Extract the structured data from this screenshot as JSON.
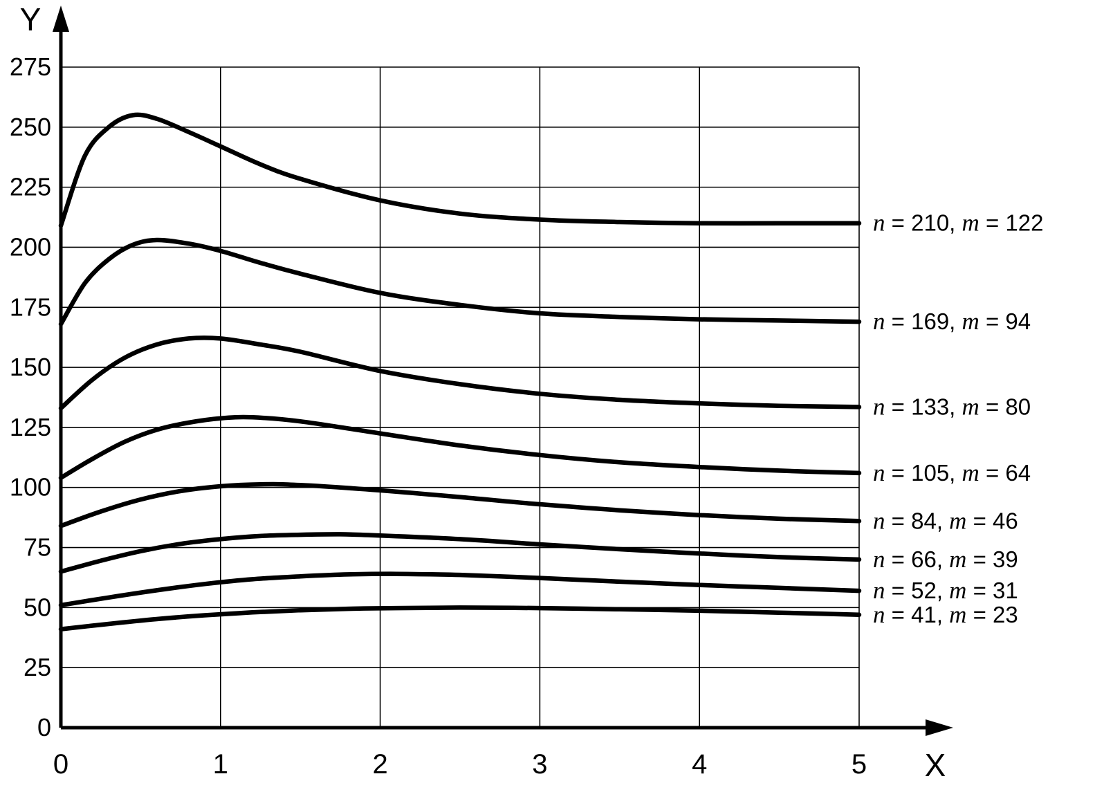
{
  "chart_data": {
    "type": "line",
    "title": "",
    "xlabel": "X",
    "ylabel": "Y",
    "xlim": [
      0,
      5
    ],
    "ylim": [
      0,
      275
    ],
    "x_ticks": [
      0,
      1,
      2,
      3,
      4,
      5
    ],
    "y_ticks": [
      0,
      25,
      50,
      75,
      100,
      125,
      150,
      175,
      200,
      225,
      250,
      275
    ],
    "grid": true,
    "legend_position": "right-inline",
    "series": [
      {
        "n": 210,
        "m": 122,
        "label": "n = 210, m = 122",
        "points": [
          [
            0,
            209
          ],
          [
            0.15,
            238
          ],
          [
            0.3,
            250
          ],
          [
            0.45,
            255
          ],
          [
            0.6,
            253.5
          ],
          [
            0.8,
            248
          ],
          [
            1.0,
            242
          ],
          [
            1.25,
            234.5
          ],
          [
            1.5,
            228.5
          ],
          [
            2.0,
            219.5
          ],
          [
            2.5,
            214
          ],
          [
            3.0,
            211.5
          ],
          [
            3.5,
            210.5
          ],
          [
            4.0,
            210
          ],
          [
            4.5,
            210
          ],
          [
            5.0,
            210
          ]
        ]
      },
      {
        "n": 169,
        "m": 94,
        "label": "n = 169, m = 94",
        "points": [
          [
            0,
            168
          ],
          [
            0.15,
            185
          ],
          [
            0.3,
            195
          ],
          [
            0.45,
            201
          ],
          [
            0.6,
            203
          ],
          [
            0.8,
            201.5
          ],
          [
            1.0,
            198.5
          ],
          [
            1.25,
            193.5
          ],
          [
            1.5,
            189
          ],
          [
            2.0,
            181
          ],
          [
            2.5,
            176
          ],
          [
            3.0,
            172.5
          ],
          [
            3.5,
            171
          ],
          [
            4.0,
            170
          ],
          [
            4.5,
            169.5
          ],
          [
            5.0,
            169
          ]
        ]
      },
      {
        "n": 133,
        "m": 80,
        "label": "n = 133, m = 80",
        "points": [
          [
            0,
            133
          ],
          [
            0.2,
            145
          ],
          [
            0.4,
            154
          ],
          [
            0.6,
            159.5
          ],
          [
            0.8,
            162
          ],
          [
            1.0,
            162
          ],
          [
            1.25,
            159.5
          ],
          [
            1.5,
            156.5
          ],
          [
            2.0,
            148.5
          ],
          [
            2.5,
            143
          ],
          [
            3.0,
            139
          ],
          [
            3.5,
            136.5
          ],
          [
            4.0,
            135
          ],
          [
            4.5,
            134
          ],
          [
            5.0,
            133.5
          ]
        ]
      },
      {
        "n": 105,
        "m": 64,
        "label": "n = 105, m = 64",
        "points": [
          [
            0,
            104
          ],
          [
            0.2,
            112
          ],
          [
            0.4,
            119
          ],
          [
            0.6,
            124
          ],
          [
            0.8,
            127
          ],
          [
            1.0,
            128.8
          ],
          [
            1.2,
            129.2
          ],
          [
            1.5,
            127.5
          ],
          [
            2.0,
            122.5
          ],
          [
            2.5,
            117.5
          ],
          [
            3.0,
            113.5
          ],
          [
            3.5,
            110.5
          ],
          [
            4.0,
            108.5
          ],
          [
            4.5,
            107
          ],
          [
            5.0,
            106
          ]
        ]
      },
      {
        "n": 84,
        "m": 46,
        "label": "n = 84, m = 46",
        "points": [
          [
            0,
            84
          ],
          [
            0.25,
            90
          ],
          [
            0.5,
            95
          ],
          [
            0.75,
            98.5
          ],
          [
            1.0,
            100.5
          ],
          [
            1.25,
            101.3
          ],
          [
            1.5,
            101
          ],
          [
            2.0,
            98.8
          ],
          [
            2.5,
            96
          ],
          [
            3.0,
            93
          ],
          [
            3.5,
            90.5
          ],
          [
            4.0,
            88.5
          ],
          [
            4.5,
            87
          ],
          [
            5.0,
            86
          ]
        ]
      },
      {
        "n": 66,
        "m": 39,
        "label": "n = 66, m = 39",
        "points": [
          [
            0,
            65
          ],
          [
            0.25,
            69.5
          ],
          [
            0.5,
            73.5
          ],
          [
            0.75,
            76.5
          ],
          [
            1.0,
            78.5
          ],
          [
            1.25,
            79.8
          ],
          [
            1.5,
            80.3
          ],
          [
            1.75,
            80.5
          ],
          [
            2.0,
            80
          ],
          [
            2.5,
            78.5
          ],
          [
            3.0,
            76.3
          ],
          [
            3.5,
            74.3
          ],
          [
            4.0,
            72.5
          ],
          [
            4.5,
            71
          ],
          [
            5.0,
            70
          ]
        ]
      },
      {
        "n": 52,
        "m": 31,
        "label": "n = 52, m = 31",
        "points": [
          [
            0,
            51
          ],
          [
            0.3,
            54.2
          ],
          [
            0.6,
            57.2
          ],
          [
            0.9,
            59.8
          ],
          [
            1.2,
            61.8
          ],
          [
            1.5,
            63
          ],
          [
            1.8,
            63.8
          ],
          [
            2.1,
            64
          ],
          [
            2.5,
            63.6
          ],
          [
            3.0,
            62.3
          ],
          [
            3.5,
            60.8
          ],
          [
            4.0,
            59.4
          ],
          [
            4.5,
            58.2
          ],
          [
            5.0,
            57
          ]
        ]
      },
      {
        "n": 41,
        "m": 23,
        "label": "n = 41, m = 23",
        "points": [
          [
            0,
            41
          ],
          [
            0.3,
            43.2
          ],
          [
            0.6,
            45.2
          ],
          [
            0.9,
            46.8
          ],
          [
            1.2,
            48
          ],
          [
            1.5,
            48.9
          ],
          [
            1.8,
            49.5
          ],
          [
            2.1,
            49.8
          ],
          [
            2.5,
            50
          ],
          [
            3.0,
            49.8
          ],
          [
            3.5,
            49.3
          ],
          [
            4.0,
            48.7
          ],
          [
            4.5,
            47.9
          ],
          [
            5.0,
            47
          ]
        ]
      }
    ]
  }
}
